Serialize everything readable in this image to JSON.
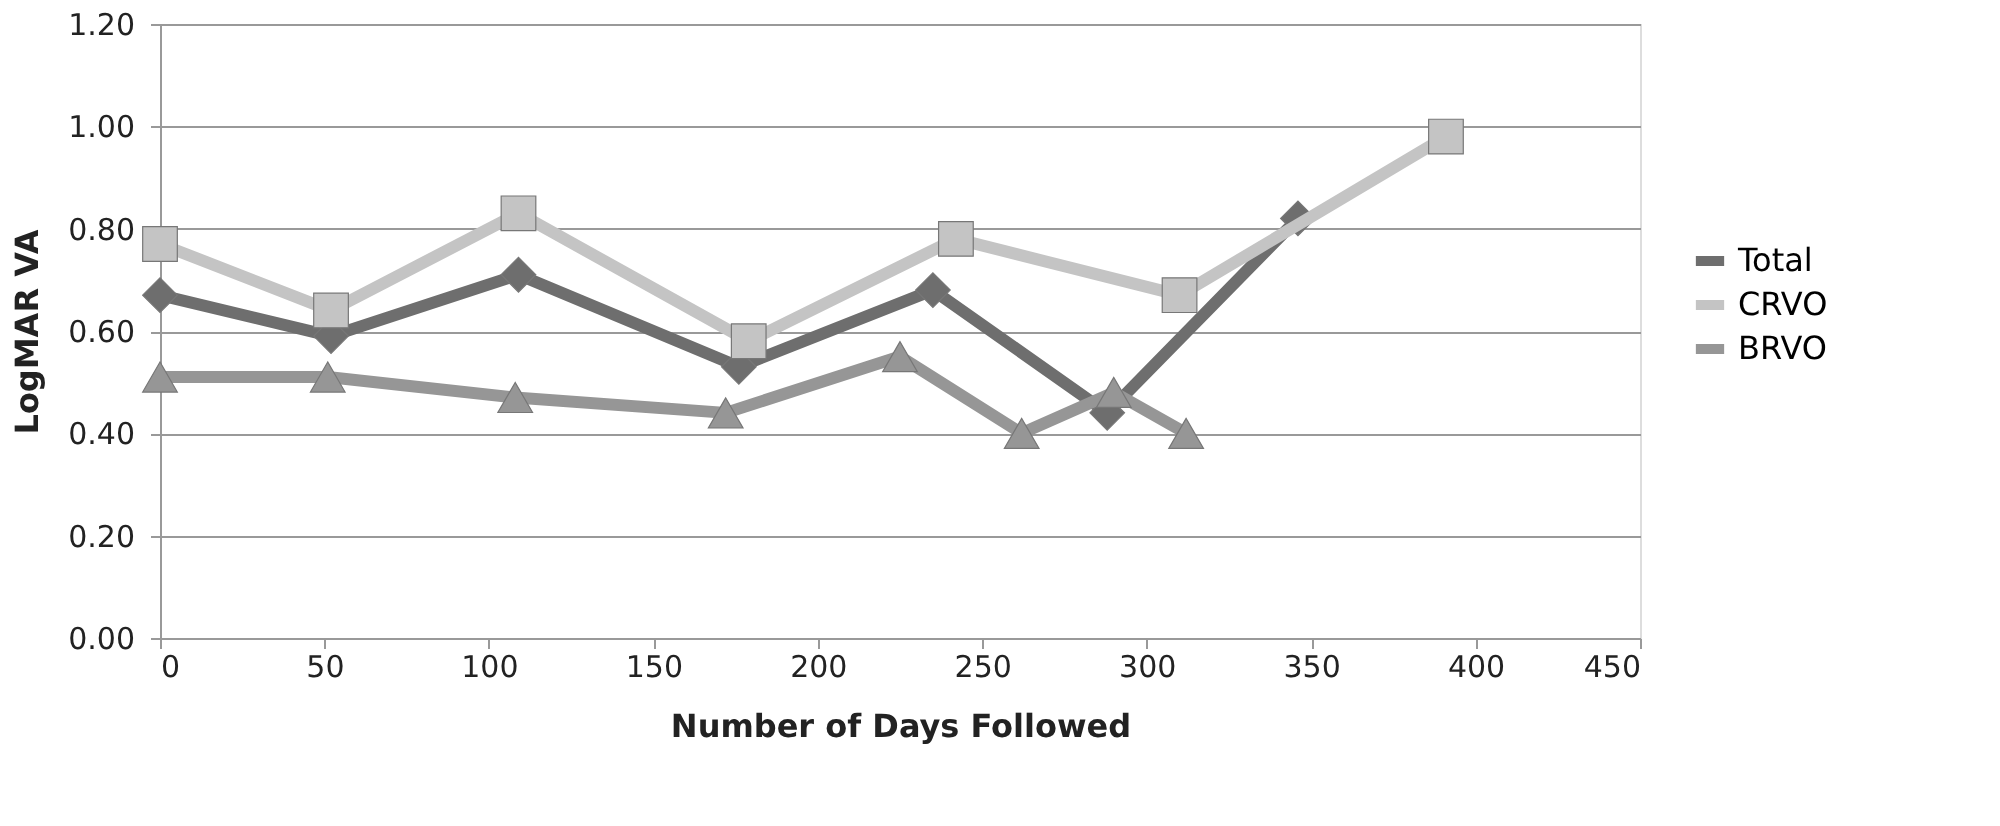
{
  "chart_data": {
    "type": "line",
    "xlabel": "Number of Days Followed",
    "ylabel": "LogMAR VA",
    "xlim": [
      0,
      450
    ],
    "xticks": [
      0,
      50,
      100,
      150,
      200,
      250,
      300,
      350,
      400,
      450
    ],
    "ylim": [
      0,
      1.2
    ],
    "yticks": [
      {
        "value": 0,
        "label": "0.00"
      },
      {
        "value": 0.2,
        "label": "0.20"
      },
      {
        "value": 0.4,
        "label": "0.40"
      },
      {
        "value": 0.6,
        "label": "0.60"
      },
      {
        "value": 0.8,
        "label": "0.80"
      },
      {
        "value": 1.0,
        "label": "1.00"
      },
      {
        "value": 1.2,
        "label": "1.20"
      }
    ],
    "grid": "y",
    "legend": "right",
    "line_style": "solid",
    "series": [
      {
        "name": "Total",
        "color": "#6e6e6e",
        "marker": "diamond",
        "x": [
          0,
          52,
          109,
          176,
          235,
          288,
          346
        ],
        "values": [
          0.67,
          0.59,
          0.71,
          0.53,
          0.68,
          0.44,
          0.82
        ]
      },
      {
        "name": "CRVO",
        "color": "#c4c4c4",
        "marker": "square",
        "x": [
          0,
          52,
          109,
          179,
          242,
          310,
          391
        ],
        "values": [
          0.77,
          0.64,
          0.83,
          0.58,
          0.78,
          0.67,
          0.98
        ]
      },
      {
        "name": "BRVO",
        "color": "#969696",
        "marker": "triangle",
        "x": [
          0,
          51,
          108,
          172,
          225,
          262,
          290,
          312
        ],
        "values": [
          0.51,
          0.51,
          0.47,
          0.44,
          0.55,
          0.4,
          0.48,
          0.4
        ]
      }
    ]
  }
}
